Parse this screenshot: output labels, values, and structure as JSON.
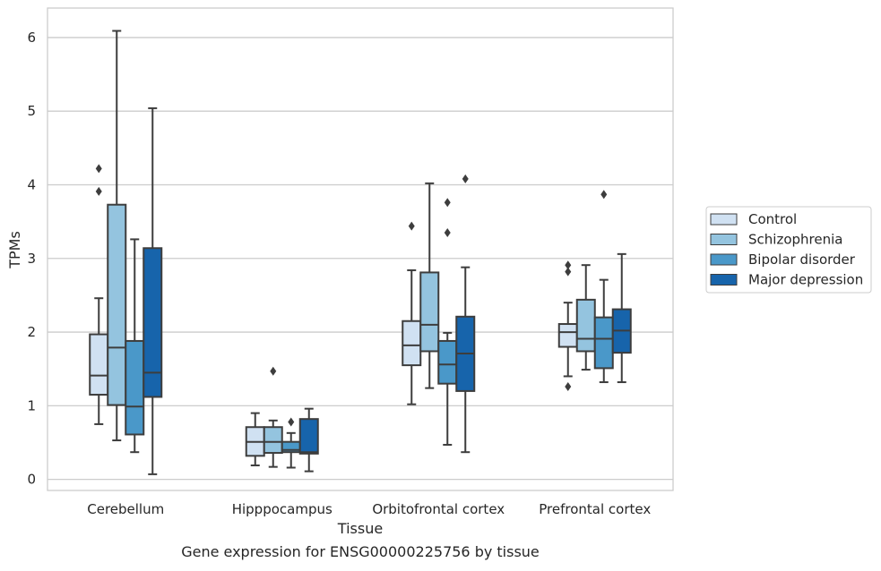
{
  "chart_data": {
    "type": "boxplot",
    "caption": "Gene expression for ENSG00000225756 by tissue",
    "xlabel": "Tissue",
    "ylabel": "TPMs",
    "ylim": [
      -0.15,
      6.4
    ],
    "yticks": [
      0,
      1,
      2,
      3,
      4,
      5,
      6
    ],
    "grid": "horizontal",
    "legend_position": "right",
    "categories": [
      "Cerebellum",
      "Hipppocampus",
      "Orbitofrontal cortex",
      "Prefrontal cortex"
    ],
    "series": [
      {
        "name": "Control",
        "color": "#d0e1f2",
        "boxes": [
          {
            "whisker_low": 0.75,
            "q1": 1.15,
            "median": 1.41,
            "q3": 1.97,
            "whisker_high": 2.46,
            "outliers": [
              3.91,
              4.22
            ]
          },
          {
            "whisker_low": 0.19,
            "q1": 0.32,
            "median": 0.51,
            "q3": 0.71,
            "whisker_high": 0.9,
            "outliers": []
          },
          {
            "whisker_low": 1.02,
            "q1": 1.55,
            "median": 1.82,
            "q3": 2.15,
            "whisker_high": 2.84,
            "outliers": [
              3.44
            ]
          },
          {
            "whisker_low": 1.4,
            "q1": 1.8,
            "median": 2.0,
            "q3": 2.11,
            "whisker_high": 2.4,
            "outliers": [
              1.26,
              2.82,
              2.91
            ]
          }
        ]
      },
      {
        "name": "Schizophrenia",
        "color": "#94c4df",
        "boxes": [
          {
            "whisker_low": 0.53,
            "q1": 1.01,
            "median": 1.79,
            "q3": 3.73,
            "whisker_high": 6.09,
            "outliers": []
          },
          {
            "whisker_low": 0.17,
            "q1": 0.36,
            "median": 0.51,
            "q3": 0.71,
            "whisker_high": 0.8,
            "outliers": [
              1.47
            ]
          },
          {
            "whisker_low": 1.24,
            "q1": 1.74,
            "median": 2.1,
            "q3": 2.81,
            "whisker_high": 4.02,
            "outliers": []
          },
          {
            "whisker_low": 1.49,
            "q1": 1.74,
            "median": 1.91,
            "q3": 2.44,
            "whisker_high": 2.91,
            "outliers": []
          }
        ]
      },
      {
        "name": "Bipolar disorder",
        "color": "#4a98c9",
        "boxes": [
          {
            "whisker_low": 0.37,
            "q1": 0.61,
            "median": 0.99,
            "q3": 1.88,
            "whisker_high": 3.26,
            "outliers": []
          },
          {
            "whisker_low": 0.16,
            "q1": 0.37,
            "median": 0.4,
            "q3": 0.51,
            "whisker_high": 0.63,
            "outliers": [
              0.78
            ]
          },
          {
            "whisker_low": 0.47,
            "q1": 1.3,
            "median": 1.56,
            "q3": 1.88,
            "whisker_high": 1.99,
            "outliers": [
              3.35,
              3.76
            ]
          },
          {
            "whisker_low": 1.32,
            "q1": 1.51,
            "median": 1.91,
            "q3": 2.2,
            "whisker_high": 2.71,
            "outliers": [
              3.87
            ]
          }
        ]
      },
      {
        "name": "Major depression",
        "color": "#1764ab",
        "boxes": [
          {
            "whisker_low": 0.07,
            "q1": 1.12,
            "median": 1.45,
            "q3": 3.14,
            "whisker_high": 5.04,
            "outliers": []
          },
          {
            "whisker_low": 0.11,
            "q1": 0.35,
            "median": 0.37,
            "q3": 0.82,
            "whisker_high": 0.96,
            "outliers": []
          },
          {
            "whisker_low": 0.37,
            "q1": 1.2,
            "median": 1.71,
            "q3": 2.21,
            "whisker_high": 2.88,
            "outliers": [
              4.08
            ]
          },
          {
            "whisker_low": 1.32,
            "q1": 1.72,
            "median": 2.02,
            "q3": 2.31,
            "whisker_high": 3.06,
            "outliers": []
          }
        ]
      }
    ]
  }
}
